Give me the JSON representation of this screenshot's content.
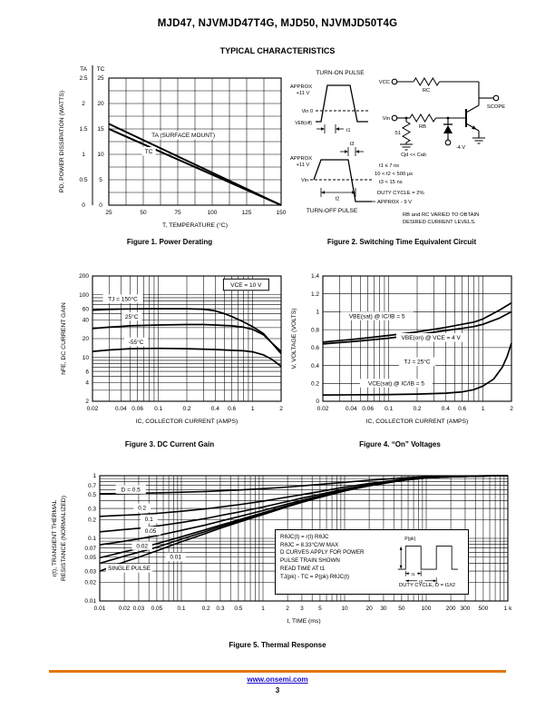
{
  "page": {
    "title": "MJD47, NJVMJD47T4G, MJD50, NJVMJD50T4G",
    "subtitle": "TYPICAL CHARACTERISTICS",
    "footer": {
      "link": "www.onsemi.com",
      "page_number": "3",
      "rule_color": "#e07812"
    }
  },
  "figures": {
    "fig1": {
      "caption": "Figure 1. Power Derating"
    },
    "fig2": {
      "caption": "Figure 2. Switching Time Equivalent Circuit",
      "labels": {
        "turn_on": "TURN-ON PULSE",
        "approx1": "APPROX",
        "v11a": "+11 V",
        "vin0": "Vin 0",
        "veboff": "VEB(off)",
        "t1": "t1",
        "t3": "t3",
        "approx2": "APPROX",
        "v11b": "+11 V",
        "vin": "Vin",
        "t2": "t2",
        "turn_off": "TURN-OFF PULSE",
        "vcc": "VCC",
        "rc": "RC",
        "rb": "RB",
        "scope": "SCOPE",
        "r51": "51",
        "cjd": "Cjd << Cab",
        "m4v": "-4 V",
        "n1": "t1 ≤ 7 ns",
        "n2": "10 < t2 < 500 μs",
        "n3": "t3 < 15 ns",
        "n4": "DUTY CYCLE = 2%",
        "n5": "APPROX - 9 V",
        "n6": "RB and RC VARIED TO OBTAIN",
        "n7": "DESIRED CURRENT LEVELS."
      }
    },
    "fig3": {
      "caption": "Figure 3. DC Current Gain"
    },
    "fig4": {
      "caption": "Figure 4. “On” Voltages"
    },
    "fig5": {
      "caption": "Figure 5. Thermal Response",
      "notebox": {
        "lines": [
          "RθJC(t) = r(t) RθJC",
          "RθJC = 8.33°C/W MAX",
          "D CURVES APPLY FOR POWER",
          "PULSE TRAIN SHOWN",
          "READ TIME AT t1",
          "TJ(pk) - TC = P(pk) RθJC(t)"
        ],
        "pulse": {
          "p_pk": "P(pk)",
          "t1": "t1",
          "t2": "t2",
          "duty": "DUTY CYCLE, D = t1/t2"
        }
      }
    }
  },
  "chart_data": [
    {
      "id": "fig1",
      "type": "line",
      "title": "Power Derating",
      "x": {
        "scale": "linear",
        "min": 25,
        "max": 150,
        "grid_step": 12.5,
        "ticks": [
          [
            25,
            "25"
          ],
          [
            50,
            "50"
          ],
          [
            75,
            "75"
          ],
          [
            100,
            "100"
          ],
          [
            125,
            "125"
          ],
          [
            150,
            "150"
          ]
        ],
        "label": "T, TEMPERATURE (°C)"
      },
      "y": {
        "scale": "linear",
        "min": 0,
        "max": 25,
        "grid_step": 2.5,
        "label": "PD, POWER DISSIPATION (WATTS)",
        "dual": {
          "headers": [
            "TA",
            "TC"
          ],
          "ticks": [
            [
              0,
              "0",
              "0"
            ],
            [
              5,
              "0.5",
              "5"
            ],
            [
              10,
              "1",
              "10"
            ],
            [
              15,
              "1.5",
              "15"
            ],
            [
              20,
              "2",
              "20"
            ],
            [
              25,
              "2.5",
              "25"
            ]
          ]
        }
      },
      "series": [
        {
          "name": "TA (SURFACE MOUNT)",
          "points": [
            [
              25,
              16
            ],
            [
              150,
              0
            ]
          ]
        },
        {
          "name": "TC",
          "points": [
            [
              25,
              15
            ],
            [
              150,
              0
            ]
          ]
        }
      ],
      "annotations": [
        {
          "x": 79,
          "y": 13.4,
          "t": "TA (SURFACE MOUNT)"
        },
        {
          "x": 54,
          "y": 10.2,
          "t": "TC"
        }
      ]
    },
    {
      "id": "fig3",
      "type": "line",
      "title": "DC Current Gain",
      "x": {
        "scale": "log",
        "min": 0.02,
        "max": 2,
        "ticks": [
          [
            0.02,
            "0.02"
          ],
          [
            0.04,
            "0.04"
          ],
          [
            0.06,
            "0.06"
          ],
          [
            0.1,
            "0.1"
          ],
          [
            0.2,
            "0.2"
          ],
          [
            0.4,
            "0.4"
          ],
          [
            0.6,
            "0.6"
          ],
          [
            1,
            "1"
          ],
          [
            2,
            "2"
          ]
        ],
        "label": "IC, COLLECTOR CURRENT (AMPS)"
      },
      "y": {
        "scale": "log",
        "min": 2,
        "max": 200,
        "ticks": [
          [
            2,
            "2"
          ],
          [
            4,
            "4"
          ],
          [
            6,
            "6"
          ],
          [
            10,
            "10"
          ],
          [
            20,
            "20"
          ],
          [
            40,
            "40"
          ],
          [
            60,
            "60"
          ],
          [
            100,
            "100"
          ],
          [
            200,
            "200"
          ]
        ],
        "label": "hFE, DC CURRENT GAIN"
      },
      "series": [
        {
          "name": "TJ = 150°C",
          "points": [
            [
              0.02,
              57
            ],
            [
              0.03,
              58.5
            ],
            [
              0.05,
              59.5
            ],
            [
              0.08,
              60
            ],
            [
              0.1,
              60
            ],
            [
              0.2,
              60
            ],
            [
              0.3,
              59
            ],
            [
              0.4,
              55.5
            ],
            [
              0.5,
              50
            ],
            [
              0.6,
              45
            ],
            [
              0.8,
              37
            ],
            [
              1,
              31
            ],
            [
              1.3,
              24
            ],
            [
              1.6,
              17
            ],
            [
              2,
              12.5
            ]
          ]
        },
        {
          "name": "25°C",
          "points": [
            [
              0.02,
              29
            ],
            [
              0.03,
              30.5
            ],
            [
              0.05,
              32
            ],
            [
              0.1,
              33
            ],
            [
              0.2,
              33.5
            ],
            [
              0.3,
              33.5
            ],
            [
              0.4,
              33
            ],
            [
              0.6,
              32
            ],
            [
              0.8,
              30.5
            ],
            [
              1,
              28
            ],
            [
              1.3,
              23
            ],
            [
              1.6,
              17
            ],
            [
              2,
              11.5
            ]
          ]
        },
        {
          "name": "-55°C",
          "points": [
            [
              0.02,
              12.5
            ],
            [
              0.03,
              13.2
            ],
            [
              0.05,
              13.8
            ],
            [
              0.1,
              14
            ],
            [
              0.2,
              13.8
            ],
            [
              0.4,
              13.4
            ],
            [
              0.6,
              13
            ],
            [
              0.8,
              12.8
            ],
            [
              1,
              12.3
            ],
            [
              1.3,
              11
            ],
            [
              1.6,
              9.3
            ],
            [
              2,
              7.2
            ]
          ]
        }
      ],
      "annotations": [
        {
          "x": 0.042,
          "y": 80,
          "t": "TJ = 150°C"
        },
        {
          "x": 0.052,
          "y": 42,
          "t": "25°C"
        },
        {
          "x": 0.058,
          "y": 16.5,
          "t": "-55°C"
        },
        {
          "x": 0.85,
          "y": 135,
          "t": "VCE = 10 V",
          "boxed": true
        }
      ]
    },
    {
      "id": "fig4",
      "type": "line",
      "title": "On Voltages",
      "x": {
        "scale": "log",
        "min": 0.02,
        "max": 2,
        "ticks": [
          [
            0.02,
            "0.02"
          ],
          [
            0.04,
            "0.04"
          ],
          [
            0.06,
            "0.06"
          ],
          [
            0.1,
            "0.1"
          ],
          [
            0.2,
            "0.2"
          ],
          [
            0.4,
            "0.4"
          ],
          [
            0.6,
            "0.6"
          ],
          [
            1,
            "1"
          ],
          [
            2,
            "2"
          ]
        ],
        "label": "IC, COLLECTOR CURRENT (AMPS)"
      },
      "y": {
        "scale": "linear",
        "min": 0,
        "max": 1.4,
        "grid_step": 0.2,
        "ticks": [
          [
            0,
            "0"
          ],
          [
            0.2,
            "0.2"
          ],
          [
            0.4,
            "0.4"
          ],
          [
            0.6,
            "0.6"
          ],
          [
            0.8,
            "0.8"
          ],
          [
            1,
            "1"
          ],
          [
            1.2,
            "1.2"
          ],
          [
            1.4,
            "1.4"
          ]
        ],
        "label": "V, VOLTAGE (VOLTS)"
      },
      "series": [
        {
          "name": "VBE(sat) @ IC/IB = 5",
          "points": [
            [
              0.02,
              0.66
            ],
            [
              0.05,
              0.7
            ],
            [
              0.1,
              0.735
            ],
            [
              0.2,
              0.775
            ],
            [
              0.4,
              0.825
            ],
            [
              0.6,
              0.86
            ],
            [
              0.8,
              0.885
            ],
            [
              1,
              0.92
            ],
            [
              1.5,
              1.02
            ],
            [
              2,
              1.1
            ]
          ]
        },
        {
          "name": "VBE(on) @ VCE = 4 V",
          "points": [
            [
              0.02,
              0.64
            ],
            [
              0.05,
              0.675
            ],
            [
              0.1,
              0.705
            ],
            [
              0.2,
              0.745
            ],
            [
              0.4,
              0.79
            ],
            [
              0.6,
              0.815
            ],
            [
              0.8,
              0.835
            ],
            [
              1,
              0.86
            ],
            [
              1.5,
              0.93
            ],
            [
              2,
              1.0
            ]
          ]
        },
        {
          "name": "VCE(sat) @ IC/IB = 5",
          "points": [
            [
              0.02,
              0.07
            ],
            [
              0.1,
              0.075
            ],
            [
              0.2,
              0.08
            ],
            [
              0.4,
              0.09
            ],
            [
              0.6,
              0.105
            ],
            [
              0.8,
              0.13
            ],
            [
              1,
              0.17
            ],
            [
              1.3,
              0.25
            ],
            [
              1.6,
              0.38
            ],
            [
              1.8,
              0.5
            ],
            [
              2,
              0.65
            ]
          ]
        }
      ],
      "annotations": [
        {
          "x": 0.075,
          "y": 0.93,
          "t": "VBE(sat) @ IC/IB = 5"
        },
        {
          "x": 0.28,
          "y": 0.69,
          "t": "VBE(on) @ VCE = 4 V"
        },
        {
          "x": 0.2,
          "y": 0.42,
          "t": "TJ = 25°C"
        },
        {
          "x": 0.12,
          "y": 0.18,
          "t": "VCE(sat) @ IC/IB = 5"
        }
      ]
    },
    {
      "id": "fig5",
      "type": "line",
      "title": "Thermal Response",
      "x": {
        "scale": "log",
        "min": 0.01,
        "max": 1000,
        "shared_points": [
          0.01,
          0.02,
          0.03,
          0.05,
          0.1,
          0.2,
          0.3,
          0.5,
          1,
          2,
          3,
          5,
          10,
          20,
          30,
          50,
          100,
          200,
          300,
          500,
          1000
        ],
        "ticks": [
          [
            0.01,
            "0.01"
          ],
          [
            0.02,
            "0.02"
          ],
          [
            0.03,
            "0.03"
          ],
          [
            0.05,
            "0.05"
          ],
          [
            0.1,
            "0.1"
          ],
          [
            0.2,
            "0.2"
          ],
          [
            0.3,
            "0.3"
          ],
          [
            0.5,
            "0.5"
          ],
          [
            1,
            "1"
          ],
          [
            2,
            "2"
          ],
          [
            3,
            "3"
          ],
          [
            5,
            "5"
          ],
          [
            10,
            "10"
          ],
          [
            20,
            "20"
          ],
          [
            30,
            "30"
          ],
          [
            50,
            "50"
          ],
          [
            100,
            "100"
          ],
          [
            200,
            "200"
          ],
          [
            300,
            "300"
          ],
          [
            500,
            "500"
          ],
          [
            1000,
            "1 k"
          ]
        ],
        "label": "t, TIME (ms)"
      },
      "y": {
        "scale": "log",
        "min": 0.01,
        "max": 1,
        "ticks": [
          [
            0.01,
            "0.01"
          ],
          [
            0.02,
            "0.02"
          ],
          [
            0.03,
            "0.03"
          ],
          [
            0.05,
            "0.05"
          ],
          [
            0.07,
            "0.07"
          ],
          [
            0.1,
            "0.1"
          ],
          [
            0.2,
            "0.2"
          ],
          [
            0.3,
            "0.3"
          ],
          [
            0.5,
            "0.5"
          ],
          [
            0.7,
            "0.7"
          ],
          [
            1,
            "1"
          ]
        ],
        "label": [
          "r(t), TRANSIENT THERMAL",
          "RESISTANCE (NORMALIZED)"
        ]
      },
      "series": [
        {
          "name": "D = 0.5",
          "values": [
            0.515,
            0.521,
            0.525,
            0.532,
            0.544,
            0.56,
            0.573,
            0.59,
            0.62,
            0.66,
            0.688,
            0.725,
            0.785,
            0.845,
            0.875,
            0.92,
            0.96,
            0.98,
            0.988,
            0.995,
            1.0
          ]
        },
        {
          "name": "0.2",
          "values": [
            0.224,
            0.234,
            0.24,
            0.25,
            0.27,
            0.296,
            0.316,
            0.344,
            0.392,
            0.456,
            0.5,
            0.56,
            0.656,
            0.752,
            0.8,
            0.872,
            0.936,
            0.968,
            0.98,
            0.992,
            1.0
          ]
        },
        {
          "name": "0.1",
          "values": [
            0.127,
            0.138,
            0.145,
            0.157,
            0.179,
            0.208,
            0.231,
            0.262,
            0.316,
            0.388,
            0.438,
            0.505,
            0.613,
            0.721,
            0.775,
            0.856,
            0.928,
            0.964,
            0.978,
            0.991,
            1.0
          ]
        },
        {
          "name": "0.05",
          "values": [
            0.079,
            0.09,
            0.098,
            0.11,
            0.134,
            0.164,
            0.188,
            0.221,
            0.278,
            0.354,
            0.406,
            0.478,
            0.592,
            0.706,
            0.763,
            0.848,
            0.924,
            0.962,
            0.976,
            0.991,
            1.0
          ]
        },
        {
          "name": "0.02",
          "values": [
            0.049,
            0.061,
            0.069,
            0.082,
            0.106,
            0.138,
            0.162,
            0.196,
            0.255,
            0.334,
            0.388,
            0.461,
            0.579,
            0.696,
            0.755,
            0.843,
            0.922,
            0.961,
            0.976,
            0.99,
            1.0
          ]
        },
        {
          "name": "0.01",
          "values": [
            0.04,
            0.052,
            0.06,
            0.072,
            0.097,
            0.129,
            0.154,
            0.188,
            0.248,
            0.327,
            0.381,
            0.455,
            0.574,
            0.693,
            0.753,
            0.842,
            0.921,
            0.96,
            0.975,
            0.99,
            1.0
          ]
        },
        {
          "name": "SINGLE PULSE",
          "values": [
            0.03,
            0.042,
            0.05,
            0.063,
            0.088,
            0.12,
            0.145,
            0.18,
            0.24,
            0.32,
            0.375,
            0.45,
            0.57,
            0.69,
            0.75,
            0.84,
            0.92,
            0.96,
            0.975,
            0.99,
            1.0
          ]
        }
      ],
      "annotations": [
        {
          "x": 0.024,
          "y": 0.56,
          "t": "D = 0.5"
        },
        {
          "x": 0.033,
          "y": 0.285,
          "t": "0.2"
        },
        {
          "x": 0.04,
          "y": 0.19,
          "t": "0.1"
        },
        {
          "x": 0.042,
          "y": 0.122,
          "t": "0.05"
        },
        {
          "x": 0.033,
          "y": 0.071,
          "t": "0.02"
        },
        {
          "x": 0.085,
          "y": 0.047,
          "t": "0.01"
        },
        {
          "x": 0.023,
          "y": 0.031,
          "t": "SINGLE PULSE"
        }
      ]
    }
  ]
}
